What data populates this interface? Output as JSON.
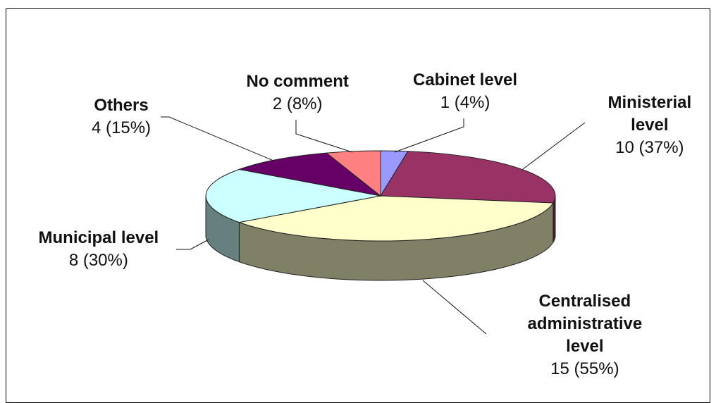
{
  "chart_data": {
    "type": "pie",
    "title": "",
    "slices": [
      {
        "name": "Cabinet level",
        "count": 1,
        "percent": "4%",
        "color": "#9999ff"
      },
      {
        "name": "Ministerial level",
        "count": 10,
        "percent": "37%",
        "color": "#993366"
      },
      {
        "name": "Centralised administrative level",
        "count": 15,
        "percent": "55%",
        "color": "#ffffcc"
      },
      {
        "name": "Municipal level",
        "count": 8,
        "percent": "30%",
        "color": "#ccffff"
      },
      {
        "name": "Others",
        "count": 4,
        "percent": "15%",
        "color": "#660066"
      },
      {
        "name": "No comment",
        "count": 2,
        "percent": "8%",
        "color": "#ff8080"
      }
    ],
    "style": "3d-exploded-pie",
    "labels": [
      {
        "lines": [
          "Cabinet level"
        ],
        "value": "1 (4%)"
      },
      {
        "lines": [
          "Ministerial",
          "level"
        ],
        "value": "10 (37%)"
      },
      {
        "lines": [
          "Centralised",
          "administrative",
          "level"
        ],
        "value": "15 (55%)"
      },
      {
        "lines": [
          "Municipal level"
        ],
        "value": "8 (30%)"
      },
      {
        "lines": [
          "Others"
        ],
        "value": "4 (15%)"
      },
      {
        "lines": [
          "No comment"
        ],
        "value": "2 (8%)"
      }
    ]
  }
}
